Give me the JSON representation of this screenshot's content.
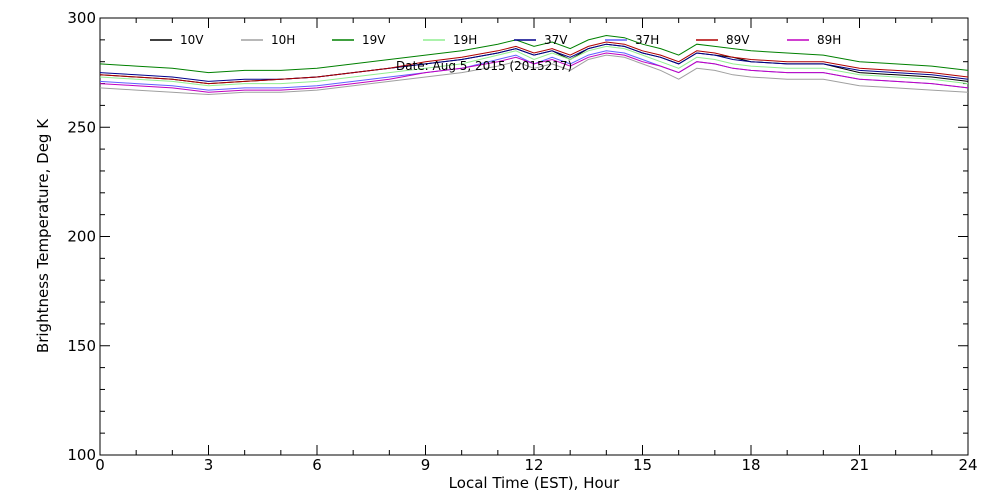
{
  "chart_data": {
    "type": "line",
    "title": "",
    "annotation": "Date: Aug  5, 2015 (2015217)",
    "xlabel": "Local Time (EST), Hour",
    "ylabel": "Brightness Temperature, Deg K",
    "xlim": [
      0,
      24
    ],
    "ylim": [
      100,
      300
    ],
    "xticks": [
      0,
      3,
      6,
      9,
      12,
      15,
      18,
      21,
      24
    ],
    "yticks": [
      100,
      150,
      200,
      250,
      300
    ],
    "grid": false,
    "legend_position": "top",
    "x": [
      0,
      1,
      2,
      3,
      4,
      5,
      6,
      7,
      8,
      9,
      10,
      11,
      11.5,
      12,
      12.5,
      13,
      13.5,
      14,
      14.5,
      15,
      15.5,
      16,
      16.5,
      17,
      17.5,
      18,
      19,
      20,
      21,
      22,
      23,
      24
    ],
    "series": [
      {
        "name": "10V",
        "color": "#000000",
        "values": [
          274,
          273,
          272,
          270,
          271,
          272,
          273,
          275,
          277,
          279,
          281,
          284,
          286,
          283,
          285,
          281,
          286,
          288,
          287,
          284,
          282,
          279,
          284,
          283,
          282,
          280,
          279,
          279,
          275,
          274,
          273,
          271
        ]
      },
      {
        "name": "10H",
        "color": "#a0a0a0",
        "values": [
          268,
          267,
          266,
          265,
          266,
          266,
          267,
          269,
          271,
          273,
          275,
          278,
          280,
          277,
          279,
          276,
          281,
          283,
          282,
          279,
          276,
          272,
          277,
          276,
          274,
          273,
          272,
          272,
          269,
          268,
          267,
          266
        ]
      },
      {
        "name": "19V",
        "color": "#008000",
        "values": [
          279,
          278,
          277,
          275,
          276,
          276,
          277,
          279,
          281,
          283,
          285,
          288,
          290,
          287,
          289,
          286,
          290,
          292,
          291,
          288,
          286,
          283,
          288,
          287,
          286,
          285,
          284,
          283,
          280,
          279,
          278,
          276
        ]
      },
      {
        "name": "19H",
        "color": "#90ee90",
        "values": [
          273,
          272,
          271,
          269,
          270,
          270,
          271,
          273,
          275,
          277,
          279,
          283,
          285,
          281,
          284,
          281,
          285,
          287,
          286,
          283,
          280,
          277,
          282,
          281,
          279,
          278,
          277,
          277,
          274,
          273,
          272,
          270
        ]
      },
      {
        "name": "37V",
        "color": "#00008b",
        "values": [
          275,
          274,
          273,
          271,
          272,
          272,
          273,
          275,
          277,
          279,
          281,
          284,
          286,
          283,
          285,
          282,
          286,
          288,
          287,
          284,
          282,
          279,
          284,
          283,
          281,
          280,
          279,
          279,
          276,
          275,
          274,
          272
        ]
      },
      {
        "name": "37H",
        "color": "#6060ff",
        "values": [
          271,
          270,
          269,
          267,
          268,
          268,
          269,
          271,
          273,
          275,
          277,
          281,
          283,
          279,
          282,
          279,
          283,
          285,
          284,
          281,
          278,
          275,
          280,
          279,
          277,
          276,
          275,
          275,
          272,
          271,
          270,
          268
        ]
      },
      {
        "name": "89V",
        "color": "#b00000",
        "values": [
          274,
          273,
          272,
          270,
          271,
          272,
          273,
          275,
          277,
          280,
          282,
          285,
          287,
          284,
          286,
          283,
          287,
          289,
          288,
          285,
          283,
          280,
          285,
          284,
          282,
          281,
          280,
          280,
          277,
          276,
          275,
          273
        ]
      },
      {
        "name": "89H",
        "color": "#c000c0",
        "values": [
          270,
          269,
          268,
          266,
          267,
          267,
          268,
          270,
          272,
          275,
          277,
          280,
          282,
          279,
          281,
          278,
          282,
          284,
          283,
          280,
          278,
          275,
          280,
          279,
          277,
          276,
          275,
          275,
          272,
          271,
          270,
          268
        ]
      }
    ]
  }
}
